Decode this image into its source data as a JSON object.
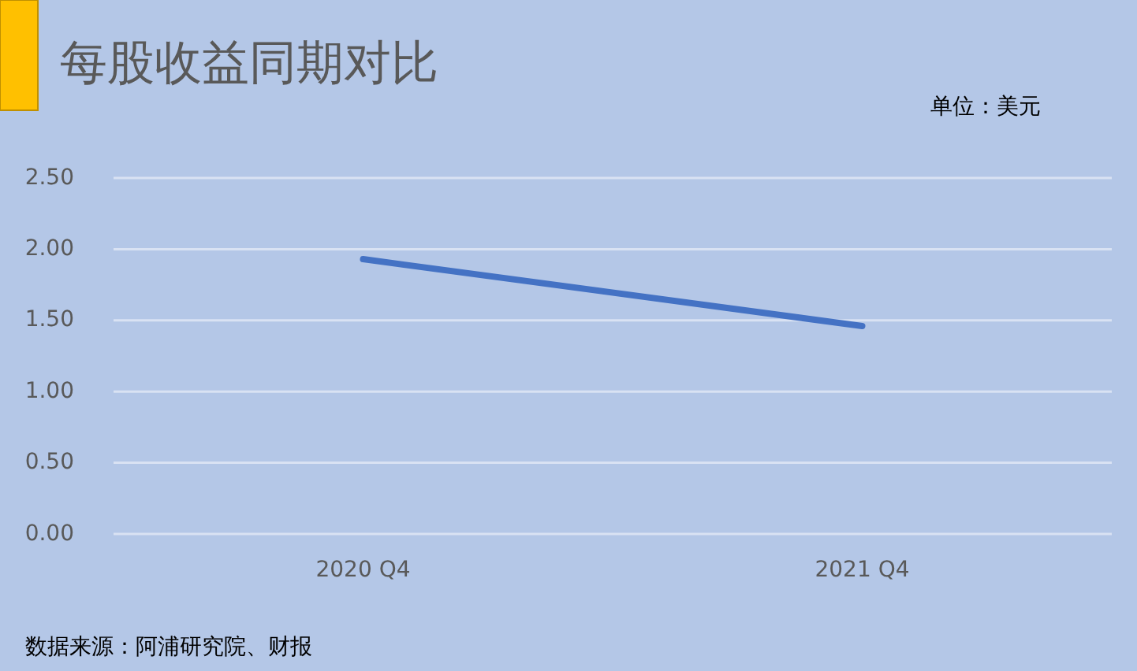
{
  "chart_data": {
    "type": "line",
    "title": "每股收益同期对比",
    "categories": [
      "2020 Q4",
      "2021 Q4"
    ],
    "series": [
      {
        "color": "#4472c4",
        "values": [
          1.93,
          1.46
        ]
      }
    ],
    "ylim": [
      0,
      2.5
    ],
    "yticks": [
      {
        "value": 0,
        "label": "0.00"
      },
      {
        "value": 0.5,
        "label": "0.50"
      },
      {
        "value": 1,
        "label": "1.00"
      },
      {
        "value": 1.5,
        "label": "1.50"
      },
      {
        "value": 2,
        "label": "2.00"
      },
      {
        "value": 2.5,
        "label": "2.50"
      }
    ],
    "grid": "y",
    "marker": "none",
    "line_style": "solid",
    "annotations": [
      "单位：美元",
      "数据来源：阿浦研究院、财报"
    ]
  }
}
